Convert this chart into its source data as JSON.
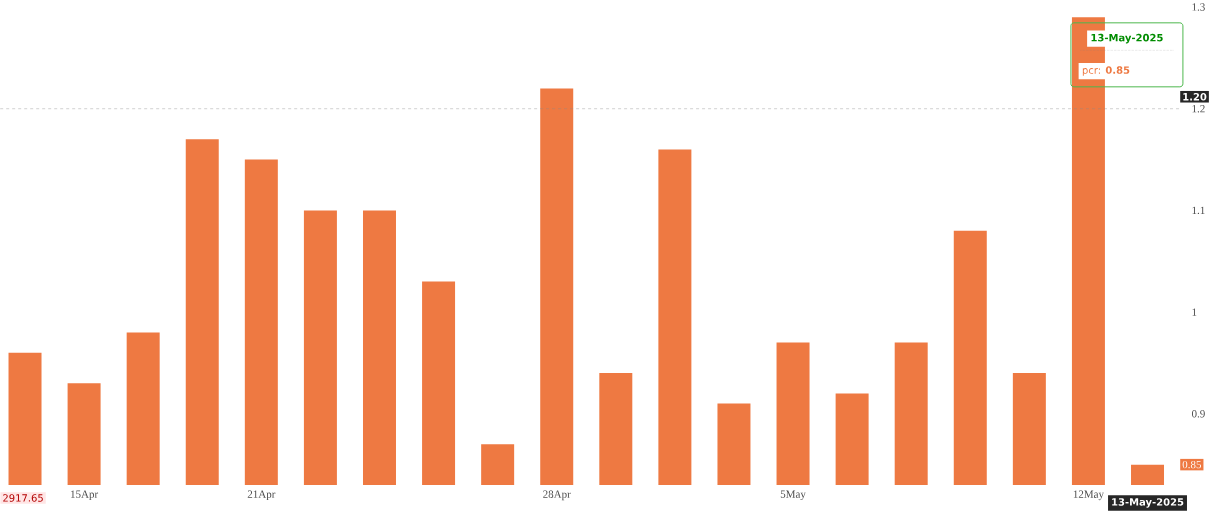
{
  "chart_data": {
    "type": "bar",
    "categories": [
      null,
      "15Apr",
      null,
      null,
      "21Apr",
      null,
      null,
      null,
      null,
      "28Apr",
      null,
      null,
      null,
      "5May",
      null,
      null,
      null,
      null,
      "12May",
      null
    ],
    "values": [
      0.96,
      0.93,
      0.98,
      1.17,
      1.15,
      1.1,
      1.1,
      1.03,
      0.87,
      1.22,
      0.94,
      1.16,
      0.91,
      0.97,
      0.92,
      0.97,
      1.08,
      0.94,
      1.29,
      0.85
    ],
    "color": "#ee7942",
    "ylim": [
      0.83,
      1.3
    ],
    "yticks": [
      0.9,
      1,
      1.1,
      1.2,
      1.3
    ],
    "ref_lines": [
      {
        "axis": "y",
        "value": 1.2,
        "label": "1.20",
        "line_style": "dashed",
        "color": "#888888"
      }
    ],
    "annotations": [
      "13-May-2025",
      "pcr: **0.85**",
      "2917.65",
      "13-May-2025",
      {
        "text": "0.85",
        "y": 0.85
      }
    ]
  }
}
